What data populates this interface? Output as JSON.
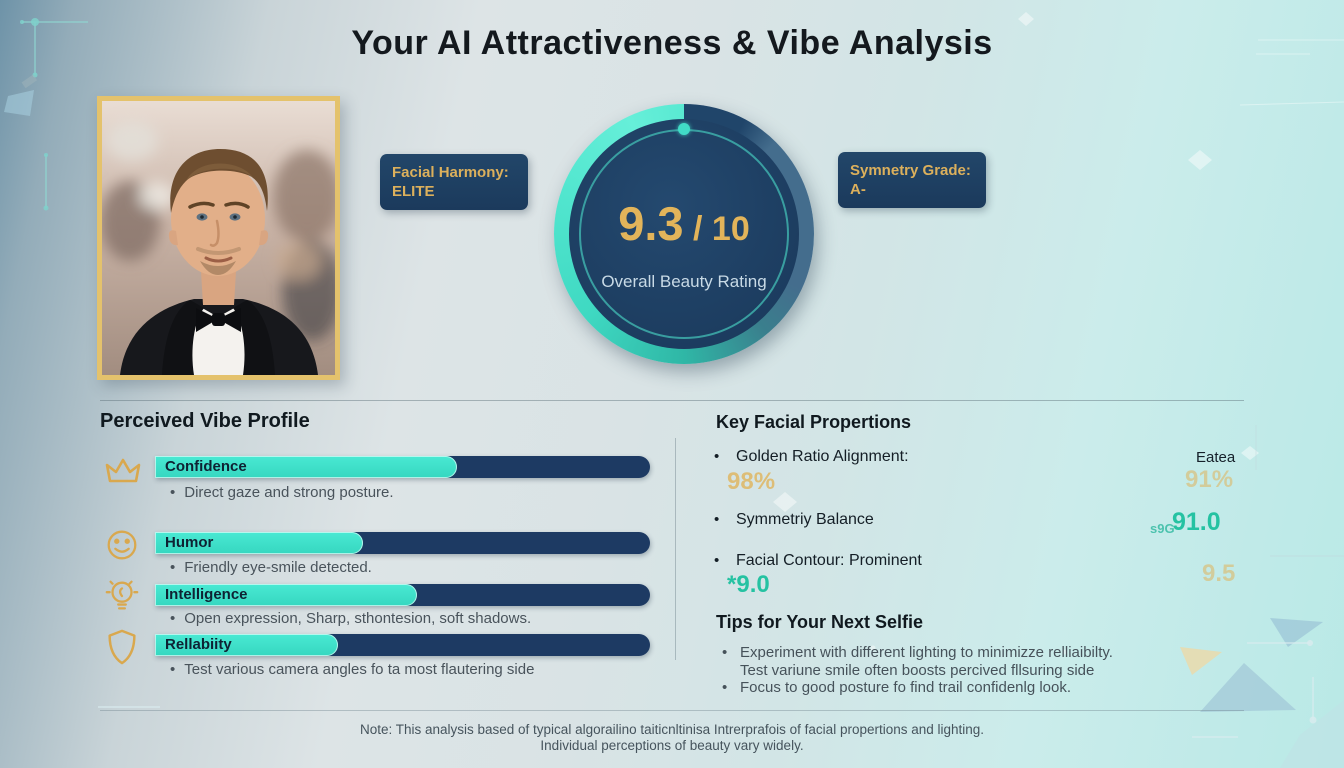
{
  "title": "Your AI Attractiveness & Vibe Analysis",
  "badges": {
    "left": {
      "line1": "Facial Harmony:",
      "line2": "ELITE"
    },
    "right": {
      "line1": "Symnetry Grade:",
      "line2": "A-"
    }
  },
  "gauge": {
    "score": "9.3",
    "denominator": " / 10",
    "label": "Overall Beauty Rating"
  },
  "vibe": {
    "heading": "Perceived Vibe Profile",
    "traits": [
      {
        "icon": "crown-icon",
        "label": "Confidence",
        "percent": 61,
        "note": "Direct gaze and strong posture."
      },
      {
        "icon": "smiley-icon",
        "label": "Humor",
        "percent": 42,
        "note": "Friendly eye-smile detected."
      },
      {
        "icon": "lightbulb-icon",
        "label": "Intelligence",
        "percent": 53,
        "note": "Open expression, Sharp, sthontesion, soft shadows."
      },
      {
        "icon": "shield-icon",
        "label": "Rellabiity",
        "percent": 37,
        "note": "Test various camera angles fo ta most flautering side"
      }
    ],
    "bullet": "•"
  },
  "proportions": {
    "heading": "Key Facial Propertions",
    "row1": {
      "label": "Golden Ratio Alignment:",
      "value": "98%",
      "right_label": "Eatea",
      "right_value": "91%"
    },
    "row2": {
      "label": "Symmetriy Balance",
      "right_small": "s9G",
      "right_value": "91.0"
    },
    "row3": {
      "label": "Facial Contour: Prominent",
      "value": "*9.0",
      "right_value": "9.5"
    }
  },
  "tips": {
    "heading": "Tips for Your Next Selfie",
    "items": [
      "Experiment with different lighting to minimizze relliaibilty.\nTest variune smile often boosts percived fllsuring side",
      "Focus to good posture fo find trail confidenlg look."
    ],
    "bullet": "•"
  },
  "footer": {
    "line1": "Note: This analysis based of typical algorailino taiticnltinisa Intrerprafois of facial propertions and lighting.",
    "line2": "Individual perceptions of beauty vary widely."
  },
  "colors": {
    "accent_teal": "#3fe2cc",
    "navy": "#1d3a63",
    "gold": "#e0b45c",
    "badge_bg": "#1e4063",
    "teal_value": "#25c2a2"
  },
  "chart_data": [
    {
      "type": "pie",
      "title": "Overall Beauty Rating",
      "categories": [
        "score",
        "remainder"
      ],
      "values": [
        9.3,
        0.7
      ],
      "center_text": "9.3 / 10",
      "legend_position": "none"
    },
    {
      "type": "bar",
      "title": "Perceived Vibe Profile",
      "categories": [
        "Confidence",
        "Humor",
        "Intelligence",
        "Rellabiity"
      ],
      "values": [
        61,
        42,
        53,
        37
      ],
      "xlabel": "",
      "ylabel": "bar fill (% of track width)",
      "ylim": [
        0,
        100
      ],
      "orientation": "horizontal",
      "grid": false
    },
    {
      "type": "table",
      "title": "Key Facial Propertions",
      "categories": [
        "Golden Ratio Alignment",
        "Symmetriy Balance",
        "Facial Contour: Prominent"
      ],
      "values": [
        "98% / 91%",
        "91.0",
        "*9.0 / 9.5"
      ]
    }
  ]
}
